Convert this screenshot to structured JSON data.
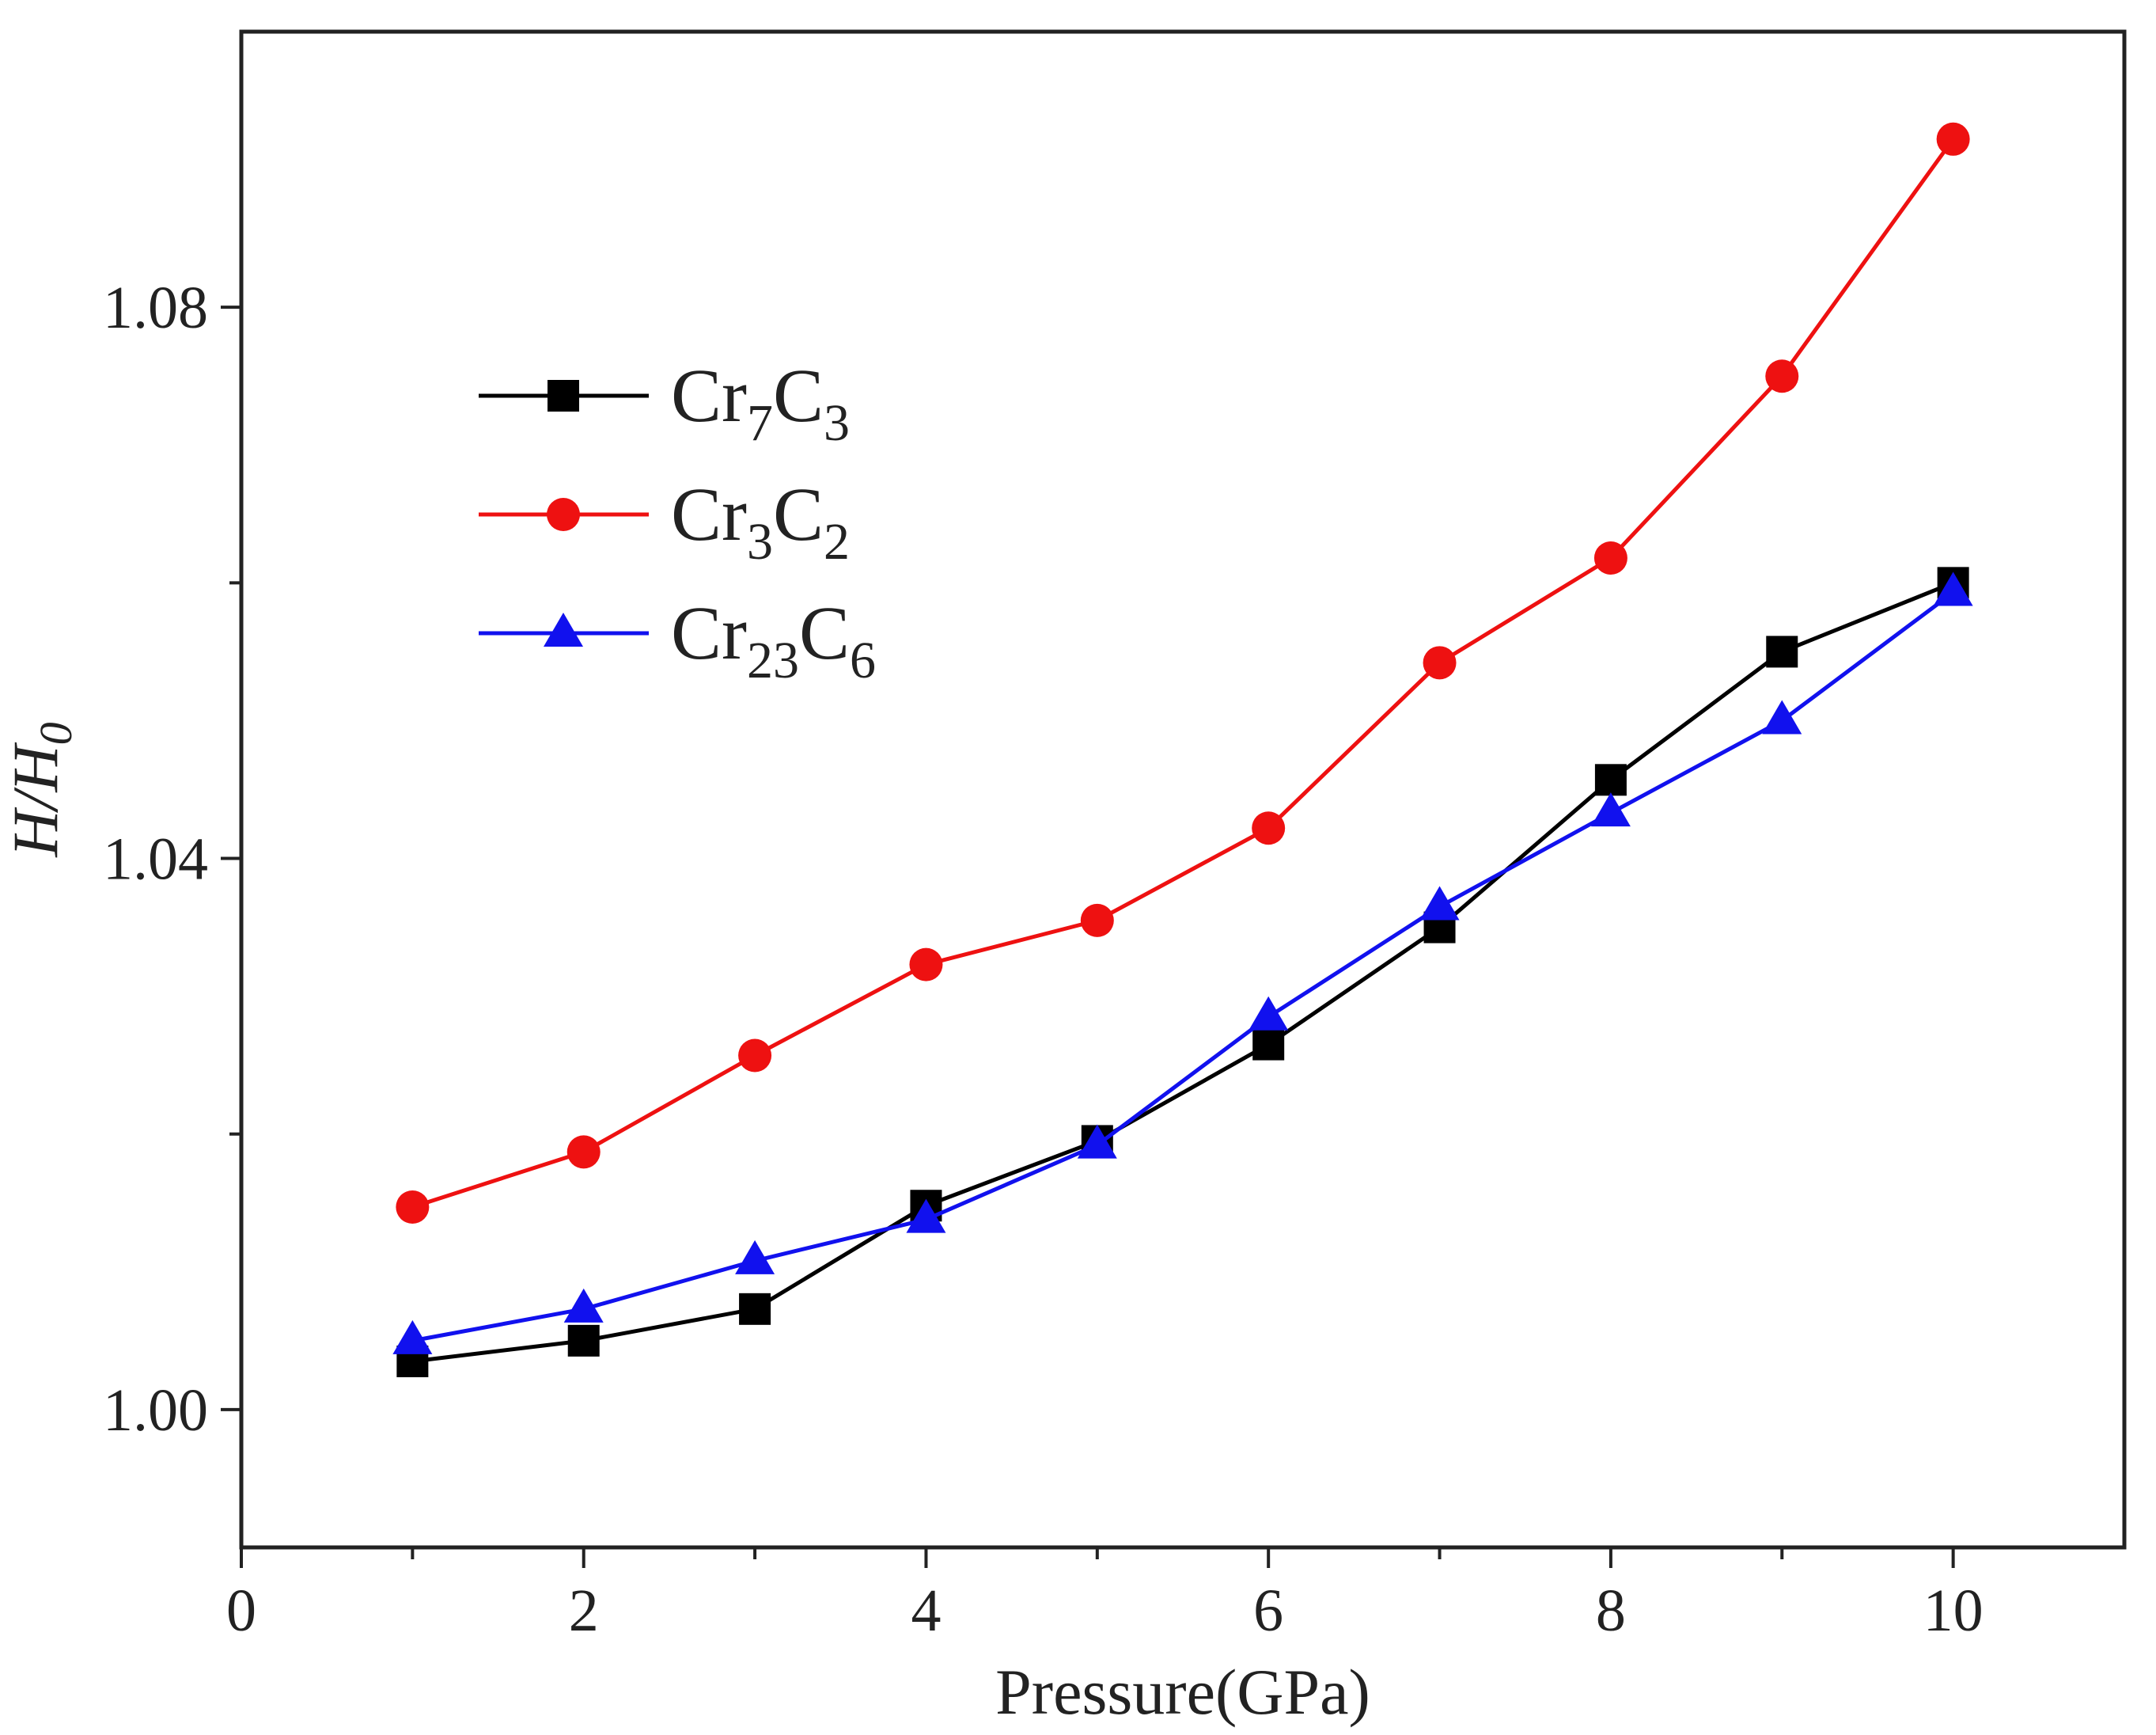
{
  "chart_data": {
    "type": "line",
    "title": "",
    "xlabel": "Pressure(GPa)",
    "ylabel": "H/H",
    "ylabel_subscript": "0",
    "x": [
      1,
      2,
      3,
      4,
      5,
      6,
      7,
      8,
      9,
      10
    ],
    "xlim": [
      0,
      11
    ],
    "ylim": [
      0.99,
      1.1
    ],
    "xticks": [
      0,
      2,
      4,
      6,
      8,
      10
    ],
    "xtick_labels": [
      "0",
      "2",
      "4",
      "6",
      "8",
      "10"
    ],
    "xticks_minor": [
      1,
      3,
      5,
      7,
      9
    ],
    "yticks": [
      1.0,
      1.04,
      1.08
    ],
    "ytick_labels": [
      "1.00",
      "1.04",
      "1.08"
    ],
    "yticks_minor": [
      1.02,
      1.06
    ],
    "grid": false,
    "legend_position": "top-left",
    "series": [
      {
        "name": "Cr7C3",
        "label_parts": [
          [
            "Cr",
            ""
          ],
          [
            "7",
            "sub"
          ],
          [
            "C",
            ""
          ],
          [
            "3",
            "sub"
          ]
        ],
        "color": "#000000",
        "marker": "square",
        "values": [
          1.0035,
          1.005,
          1.0073,
          1.0148,
          1.0195,
          1.0265,
          1.035,
          1.0457,
          1.055,
          1.06
        ]
      },
      {
        "name": "Cr3C2",
        "label_parts": [
          [
            "Cr",
            ""
          ],
          [
            "3",
            "sub"
          ],
          [
            "C",
            ""
          ],
          [
            "2",
            "sub"
          ]
        ],
        "color": "#ee1111",
        "marker": "circle",
        "values": [
          1.0147,
          1.0187,
          1.0257,
          1.0323,
          1.0355,
          1.0422,
          1.0542,
          1.0618,
          1.075,
          1.0922
        ]
      },
      {
        "name": "Cr23C6",
        "label_parts": [
          [
            "Cr",
            ""
          ],
          [
            "23",
            "sub"
          ],
          [
            "C",
            ""
          ],
          [
            "6",
            "sub"
          ]
        ],
        "color": "#1111ee",
        "marker": "triangle",
        "values": [
          1.005,
          1.0073,
          1.0108,
          1.0138,
          1.0192,
          1.0285,
          1.0365,
          1.0433,
          1.05,
          1.0593
        ]
      }
    ]
  }
}
